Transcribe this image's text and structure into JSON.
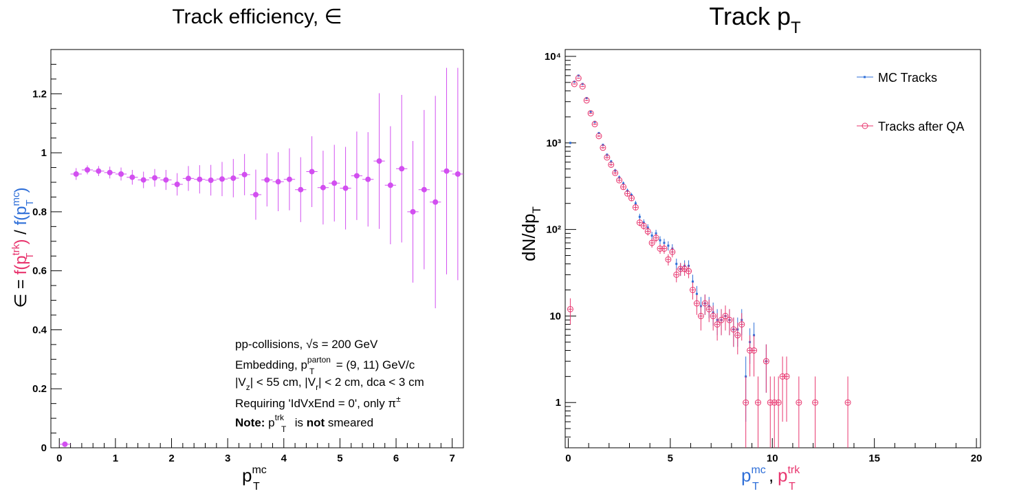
{
  "colors": {
    "eff_marker": "#d24ff0",
    "mc": "#2f6fd8",
    "trk": "#e8356e",
    "axis": "#000000"
  },
  "left": {
    "title": "Track efficiency, ∈",
    "ylabel": {
      "prefix": "∈ = ",
      "num_main": "f(p",
      "num_sup": "trk",
      "num_sub": "T",
      "num_close": ")",
      "slash": " / ",
      "den_main": "f(p",
      "den_sup": "mc",
      "den_sub": "T",
      "den_close": ")"
    },
    "xlabel": {
      "main": "p",
      "sup": "mc",
      "sub": "T"
    },
    "annotations": {
      "line1_pre": "pp-collisions, ",
      "line1_sqrt": "√s",
      "line1_post": " = 200 GeV",
      "line2_pre": "Embedding, p",
      "line2_sup": "parton",
      "line2_sub": "T",
      "line2_post": " = (9, 11) GeV/c",
      "line3_a": "|V",
      "line3_a_sub": "z",
      "line3_b": "| < 55 cm, |V",
      "line3_b_sub": "r",
      "line3_c": "| < 2 cm, dca < 3 cm",
      "line4_pre": "Requiring 'IdVxEnd = 0', only π",
      "line4_sup": "±",
      "line5_bold": "Note:",
      "line5_p": " p",
      "line5_sup": "trk",
      "line5_sub": "T",
      "line5_is": " is ",
      "line5_not": "not",
      "line5_post": " smeared"
    }
  },
  "right": {
    "title_main": "Track p",
    "title_sub": "T",
    "ylabel": {
      "main": "dN/dp",
      "sub": "T"
    },
    "xlabel": {
      "mc_main": "p",
      "mc_sup": "mc",
      "mc_sub": "T",
      "comma": ", ",
      "trk_main": "p",
      "trk_sup": "trk",
      "trk_sub": "T"
    },
    "legend": [
      "MC Tracks",
      "Tracks after QA"
    ]
  },
  "chart_data": [
    {
      "type": "scatter",
      "title": "Track efficiency, ∈",
      "xlabel": "p_T^mc",
      "ylabel": "∈ = f(p_T^trk) / f(p_T^mc)",
      "xlim": [
        -0.15,
        7.2
      ],
      "ylim": [
        0,
        1.35
      ],
      "xticks": [
        0,
        1,
        2,
        3,
        4,
        5,
        6,
        7
      ],
      "yticks": [
        0,
        0.2,
        0.4,
        0.6,
        0.8,
        1,
        1.2
      ],
      "ytick_labels": [
        "0",
        "0.2",
        "0.4",
        "0.6",
        "0.8",
        "1",
        "1.2"
      ],
      "bin_half_width": 0.1,
      "series": [
        {
          "x": [
            0.1,
            0.3,
            0.5,
            0.7,
            0.9,
            1.1,
            1.3,
            1.5,
            1.7,
            1.9,
            2.1,
            2.3,
            2.5,
            2.7,
            2.9,
            3.1,
            3.3,
            3.5,
            3.7,
            3.9,
            4.1,
            4.3,
            4.5,
            4.7,
            4.9,
            5.1,
            5.3,
            5.5,
            5.7,
            5.9,
            6.1,
            6.3,
            6.5,
            6.7,
            6.9,
            7.1
          ],
          "y": [
            0.012,
            0.928,
            0.942,
            0.938,
            0.933,
            0.928,
            0.917,
            0.908,
            0.915,
            0.908,
            0.893,
            0.913,
            0.91,
            0.907,
            0.911,
            0.914,
            0.926,
            0.858,
            0.908,
            0.902,
            0.91,
            0.875,
            0.936,
            0.882,
            0.897,
            0.88,
            0.922,
            0.91,
            0.972,
            0.89,
            0.946,
            0.8,
            0.875,
            0.833,
            0.938,
            0.928
          ],
          "err": [
            0.0,
            0.02,
            0.015,
            0.017,
            0.02,
            0.022,
            0.025,
            0.028,
            0.03,
            0.034,
            0.038,
            0.042,
            0.048,
            0.052,
            0.058,
            0.065,
            0.07,
            0.085,
            0.09,
            0.1,
            0.105,
            0.11,
            0.12,
            0.125,
            0.13,
            0.14,
            0.15,
            0.16,
            0.23,
            0.2,
            0.25,
            0.24,
            0.27,
            0.36,
            0.35,
            0.36
          ]
        }
      ]
    },
    {
      "type": "scatter",
      "title": "Track p_T",
      "xlabel": "p_T^mc, p_T^trk",
      "ylabel": "dN/dp_T",
      "log_y": true,
      "xlim": [
        -0.15,
        20.2
      ],
      "ylim": [
        0.3,
        12000
      ],
      "xticks": [
        0,
        5,
        10,
        15,
        20
      ],
      "yticks": [
        1,
        10,
        100,
        1000,
        10000
      ],
      "ytick_labels": [
        "1",
        "10",
        "10²",
        "10³",
        "10⁴"
      ],
      "legend_position": "top-right",
      "series": [
        {
          "name": "MC Tracks",
          "x": [
            0.1,
            0.3,
            0.5,
            0.7,
            0.9,
            1.1,
            1.3,
            1.5,
            1.7,
            1.9,
            2.1,
            2.3,
            2.5,
            2.7,
            2.9,
            3.1,
            3.3,
            3.5,
            3.7,
            3.9,
            4.1,
            4.3,
            4.5,
            4.7,
            4.9,
            5.1,
            5.3,
            5.5,
            5.7,
            5.9,
            6.1,
            6.3,
            6.5,
            6.7,
            6.9,
            7.1,
            7.3,
            7.5,
            7.7,
            7.9,
            8.1,
            8.3,
            8.5,
            8.7,
            8.9,
            9.1,
            9.7
          ],
          "y": [
            1000,
            5100,
            6000,
            4800,
            3300,
            2300,
            1750,
            1300,
            950,
            730,
            610,
            480,
            400,
            340,
            280,
            250,
            200,
            140,
            120,
            105,
            85,
            90,
            75,
            70,
            65,
            60,
            40,
            35,
            38,
            38,
            25,
            18,
            13,
            14,
            13,
            11,
            9,
            9,
            10,
            9,
            7,
            7,
            9,
            2,
            5,
            6,
            3
          ],
          "err": [
            30,
            70,
            80,
            70,
            55,
            45,
            40,
            35,
            30,
            27,
            24,
            21,
            20,
            18,
            16,
            15,
            14,
            12,
            11,
            10,
            9,
            9,
            8.5,
            8,
            8,
            7.5,
            6,
            6,
            6,
            6,
            5,
            4.2,
            3.6,
            3.7,
            3.6,
            3.3,
            3,
            3,
            3.2,
            3,
            2.6,
            2.6,
            3,
            1.4,
            2.2,
            2.4,
            1.7
          ]
        },
        {
          "name": "Tracks after QA",
          "x": [
            0.1,
            0.3,
            0.5,
            0.7,
            0.9,
            1.1,
            1.3,
            1.5,
            1.7,
            1.9,
            2.1,
            2.3,
            2.5,
            2.7,
            2.9,
            3.1,
            3.3,
            3.5,
            3.7,
            3.9,
            4.1,
            4.3,
            4.5,
            4.7,
            4.9,
            5.1,
            5.3,
            5.5,
            5.7,
            5.9,
            6.1,
            6.3,
            6.5,
            6.7,
            6.9,
            7.1,
            7.3,
            7.5,
            7.7,
            7.9,
            8.1,
            8.3,
            8.5,
            8.7,
            8.9,
            9.1,
            9.3,
            9.7,
            9.9,
            10.1,
            10.3,
            10.5,
            10.7,
            11.3,
            12.1,
            13.7
          ],
          "y": [
            12,
            4800,
            5600,
            4500,
            3100,
            2200,
            1650,
            1200,
            880,
            680,
            560,
            450,
            370,
            310,
            260,
            230,
            180,
            120,
            110,
            95,
            70,
            80,
            60,
            60,
            45,
            55,
            30,
            35,
            35,
            33,
            20,
            14,
            10,
            14,
            12,
            10,
            8,
            9,
            10,
            9,
            7,
            6,
            8,
            1,
            4,
            4,
            1,
            3,
            1,
            1,
            1,
            2,
            2,
            1,
            1,
            1
          ],
          "err": [
            4,
            70,
            75,
            67,
            56,
            47,
            41,
            35,
            30,
            26,
            24,
            21,
            19,
            18,
            16,
            15,
            13,
            11,
            10.5,
            10,
            8.4,
            9,
            7.7,
            7.7,
            6.7,
            7.4,
            5.5,
            5.9,
            5.9,
            5.7,
            4.5,
            3.7,
            3.2,
            3.7,
            3.5,
            3.2,
            2.8,
            3,
            3.2,
            3,
            2.6,
            2.4,
            2.8,
            1,
            2,
            2,
            1,
            1.7,
            1,
            1,
            1,
            1.4,
            1.4,
            1,
            1,
            1
          ]
        }
      ]
    }
  ]
}
